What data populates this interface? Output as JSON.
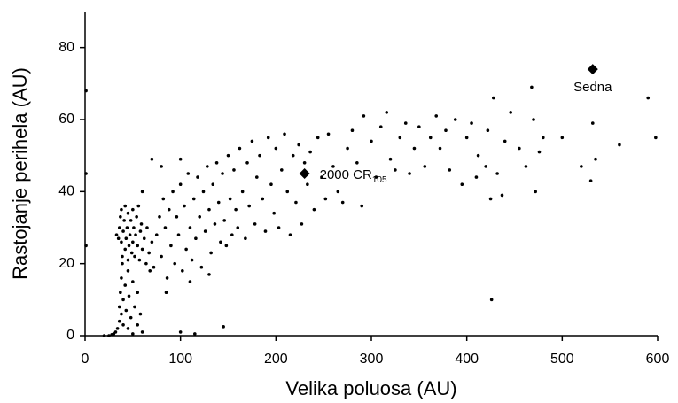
{
  "chart_data": {
    "type": "scatter",
    "x_label": "Velika poluosa (AU)",
    "y_label": "Rastojanje perihela (AU)",
    "xlim": [
      0,
      600
    ],
    "ylim": [
      0,
      90
    ],
    "xticks": [
      0,
      100,
      200,
      300,
      400,
      500,
      600
    ],
    "yticks": [
      0,
      20,
      40,
      60,
      80
    ],
    "color": "#000000",
    "x": [
      20,
      25,
      28,
      30,
      32,
      34,
      36,
      36,
      37,
      38,
      38,
      39,
      40,
      40,
      42,
      43,
      45,
      46,
      48,
      50,
      52,
      55,
      55,
      58,
      60,
      45,
      50,
      100,
      115,
      145,
      1,
      1,
      1,
      33,
      35,
      36,
      37,
      38,
      38,
      39,
      40,
      41,
      42,
      42,
      43,
      44,
      45,
      45,
      46,
      47,
      48,
      49,
      50,
      50,
      51,
      52,
      53,
      54,
      55,
      56,
      57,
      58,
      59,
      60,
      62,
      64,
      65,
      67,
      68,
      70,
      72,
      75,
      78,
      80,
      82,
      84,
      86,
      88,
      90,
      92,
      94,
      96,
      98,
      100,
      102,
      104,
      106,
      108,
      110,
      112,
      114,
      116,
      118,
      120,
      122,
      124,
      126,
      128,
      130,
      132,
      134,
      136,
      138,
      140,
      142,
      144,
      146,
      148,
      150,
      152,
      154,
      156,
      158,
      160,
      162,
      165,
      168,
      170,
      172,
      175,
      178,
      180,
      183,
      186,
      189,
      192,
      195,
      198,
      200,
      203,
      206,
      209,
      212,
      215,
      218,
      221,
      224,
      227,
      230,
      70,
      80,
      100,
      60,
      85,
      110,
      130,
      233,
      236,
      240,
      244,
      248,
      252,
      255,
      260,
      265,
      270,
      275,
      280,
      285,
      290,
      292,
      300,
      305,
      310,
      316,
      320,
      325,
      330,
      336,
      340,
      345,
      350,
      356,
      362,
      368,
      372,
      378,
      382,
      388,
      395,
      400,
      405,
      412,
      420,
      422,
      426,
      428,
      432,
      437,
      440,
      446,
      455,
      462,
      468,
      470,
      472,
      476,
      480,
      500,
      520,
      530,
      532,
      535,
      560,
      590,
      598,
      425,
      410
    ],
    "values": [
      0,
      0,
      0.3,
      0.5,
      1,
      2,
      4,
      8,
      12,
      16,
      6,
      20,
      10,
      3,
      14,
      7,
      18,
      11,
      5,
      15,
      8,
      3,
      12,
      6,
      1,
      2,
      0.5,
      1,
      0.5,
      2.5,
      25,
      45,
      68,
      28,
      27,
      30,
      33,
      26,
      35,
      22,
      29,
      32,
      24,
      36,
      27,
      30,
      34,
      21,
      25,
      28,
      32,
      23,
      35,
      26,
      30,
      22,
      28,
      33,
      25,
      36,
      21,
      29,
      31,
      24,
      27,
      20,
      30,
      23,
      18,
      26,
      19,
      28,
      33,
      22,
      38,
      30,
      16,
      35,
      25,
      40,
      20,
      33,
      28,
      42,
      18,
      36,
      24,
      45,
      30,
      21,
      38,
      27,
      44,
      33,
      19,
      40,
      29,
      47,
      35,
      23,
      42,
      31,
      48,
      37,
      26,
      45,
      32,
      25,
      50,
      38,
      28,
      46,
      35,
      30,
      52,
      40,
      27,
      48,
      36,
      54,
      31,
      44,
      50,
      38,
      29,
      55,
      42,
      34,
      52,
      30,
      46,
      56,
      40,
      28,
      50,
      37,
      53,
      31,
      48,
      49,
      47,
      49,
      40,
      12,
      15,
      17,
      42,
      51,
      35,
      55,
      44,
      38,
      56,
      47,
      40,
      37,
      52,
      57,
      48,
      36,
      61,
      54,
      44,
      58,
      62,
      49,
      46,
      55,
      59,
      45,
      52,
      58,
      47,
      55,
      61,
      52,
      57,
      46,
      60,
      42,
      55,
      59,
      50,
      47,
      57,
      10,
      66,
      45,
      39,
      54,
      62,
      52,
      47,
      69,
      60,
      40,
      51,
      55,
      55,
      47,
      43,
      59,
      49,
      53,
      66,
      55,
      38,
      44
    ],
    "annotations": [
      {
        "text": "Sedna",
        "x": 532,
        "y": 74
      },
      {
        "text": "2000 CR",
        "subscript": "105",
        "x": 230,
        "y": 45
      }
    ]
  }
}
